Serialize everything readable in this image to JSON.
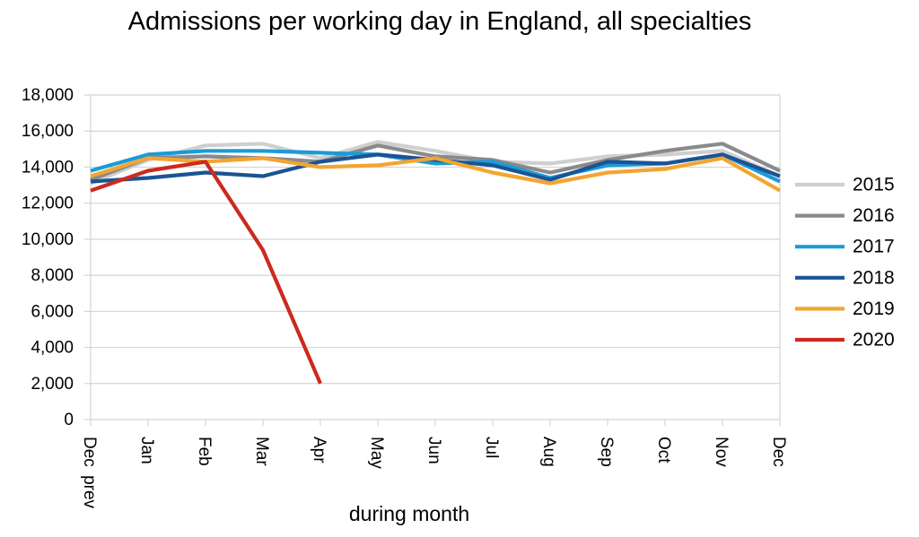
{
  "chart_data": {
    "type": "line",
    "title": "Admissions per working day in England, all specialties",
    "xlabel": "during month",
    "ylabel": "",
    "categories": [
      "Dec prev",
      "Jan",
      "Feb",
      "Mar",
      "Apr",
      "May",
      "Jun",
      "Jul",
      "Aug",
      "Sep",
      "Oct",
      "Nov",
      "Dec"
    ],
    "ylim": [
      0,
      18000
    ],
    "yticks": [
      0,
      2000,
      4000,
      6000,
      8000,
      10000,
      12000,
      14000,
      16000,
      18000
    ],
    "ytick_labels": [
      "0",
      "2,000",
      "4,000",
      "6,000",
      "8,000",
      "10,000",
      "12,000",
      "14,000",
      "16,000",
      "18,000"
    ],
    "grid": true,
    "legend_position": "right",
    "series": [
      {
        "name": "2015",
        "color": "#cfcfcf",
        "values": [
          13100,
          14400,
          15200,
          15300,
          14500,
          15400,
          14900,
          14300,
          14200,
          14600,
          14700,
          14900,
          13500
        ]
      },
      {
        "name": "2016",
        "color": "#8a8a8a",
        "values": [
          13300,
          14500,
          14600,
          14500,
          14300,
          15200,
          14600,
          14400,
          13700,
          14400,
          14900,
          15300,
          13800
        ]
      },
      {
        "name": "2017",
        "color": "#1a9bd8",
        "values": [
          13800,
          14700,
          14900,
          14900,
          14800,
          14700,
          14200,
          14300,
          13400,
          14100,
          14200,
          14700,
          13200
        ]
      },
      {
        "name": "2018",
        "color": "#1a5494",
        "values": [
          13200,
          13400,
          13700,
          13500,
          14300,
          14700,
          14400,
          14100,
          13300,
          14300,
          14200,
          14700,
          13500
        ]
      },
      {
        "name": "2019",
        "color": "#f2a531",
        "values": [
          13500,
          14500,
          14300,
          14500,
          14000,
          14100,
          14500,
          13700,
          13100,
          13700,
          13900,
          14500,
          12700
        ]
      },
      {
        "name": "2020",
        "color": "#cc2a1e",
        "values": [
          12700,
          13800,
          14300,
          9400,
          2000,
          null,
          null,
          null,
          null,
          null,
          null,
          null,
          null
        ]
      }
    ]
  }
}
